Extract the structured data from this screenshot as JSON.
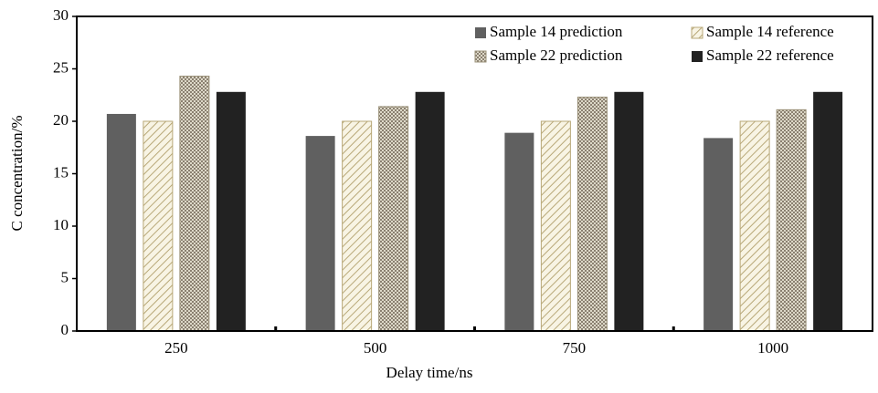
{
  "chart_data": {
    "type": "bar",
    "categories": [
      "250",
      "500",
      "750",
      "1000"
    ],
    "series": [
      {
        "name": "Sample 14 prediction",
        "color": "#606060",
        "pattern": "solid",
        "values": [
          20.7,
          18.6,
          18.9,
          18.4
        ]
      },
      {
        "name": "Sample 14 reference",
        "color": "#b8a878",
        "pattern": "diagonal",
        "values": [
          20,
          20,
          20,
          20
        ]
      },
      {
        "name": "Sample 22 prediction",
        "color": "#9a9078",
        "pattern": "crosshatch",
        "values": [
          24.3,
          21.4,
          22.3,
          21.1
        ]
      },
      {
        "name": "Sample 22 reference",
        "color": "#222222",
        "pattern": "solid",
        "values": [
          22.8,
          22.8,
          22.8,
          22.8
        ]
      }
    ],
    "xlabel": "Delay time/ns",
    "ylabel": "C concentration/%",
    "ylim": [
      0,
      30
    ],
    "yticks": [
      0,
      5,
      10,
      15,
      20,
      25,
      30
    ],
    "legend": "upper right"
  }
}
